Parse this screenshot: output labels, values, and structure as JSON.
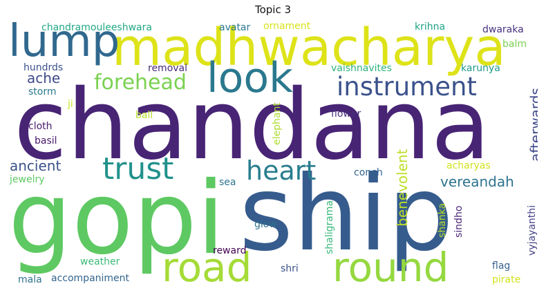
{
  "title": "Topic 3",
  "words": [
    {
      "text": "chandana",
      "color": "#482475"
    },
    {
      "text": "gopi",
      "color": "#5ec962"
    },
    {
      "text": "ship",
      "color": "#365c8d"
    },
    {
      "text": "madhwacharya",
      "color": "#dde318"
    },
    {
      "text": "lump",
      "color": "#31688e"
    },
    {
      "text": "look",
      "color": "#2a788e"
    },
    {
      "text": "road",
      "color": "#a5db36"
    },
    {
      "text": "round",
      "color": "#95d840"
    },
    {
      "text": "trust",
      "color": "#21918c"
    },
    {
      "text": "heart",
      "color": "#287d8e"
    },
    {
      "text": "instrument",
      "color": "#3b528b"
    },
    {
      "text": "forehead",
      "color": "#7ad151"
    },
    {
      "text": "ache",
      "color": "#3e4a89"
    },
    {
      "text": "ancient",
      "color": "#3b528b"
    },
    {
      "text": "vereandah",
      "color": "#2c728e"
    },
    {
      "text": "afterwards",
      "color": "#3e4989"
    },
    {
      "text": "benevolent",
      "color": "#bddf26"
    },
    {
      "text": "chandramouleeshwara",
      "color": "#22a884"
    },
    {
      "text": "avatar",
      "color": "#2a788e"
    },
    {
      "text": "ornament",
      "color": "#d8e219"
    },
    {
      "text": "krihna",
      "color": "#20a386"
    },
    {
      "text": "dwaraka",
      "color": "#46327e"
    },
    {
      "text": "balm",
      "color": "#7ad151"
    },
    {
      "text": "hundrds",
      "color": "#3b528b"
    },
    {
      "text": "removal",
      "color": "#482878"
    },
    {
      "text": "vaishnavites",
      "color": "#2db27d"
    },
    {
      "text": "karunya",
      "color": "#1f9a8a"
    },
    {
      "text": "storm",
      "color": "#2a788e"
    },
    {
      "text": "ji",
      "color": "#c8e020"
    },
    {
      "text": "ball",
      "color": "#b5de2b"
    },
    {
      "text": "elephant",
      "color": "#addc30"
    },
    {
      "text": "flower",
      "color": "#472d7b"
    },
    {
      "text": "cloth",
      "color": "#481a6c"
    },
    {
      "text": "basil",
      "color": "#48186a"
    },
    {
      "text": "jewelry",
      "color": "#5ec962"
    },
    {
      "text": "sea",
      "color": "#2c728e"
    },
    {
      "text": "conch",
      "color": "#33638d"
    },
    {
      "text": "acharyas",
      "color": "#d2e21b"
    },
    {
      "text": "shaligrama",
      "color": "#35b779"
    },
    {
      "text": "shanka",
      "color": "#b8de29"
    },
    {
      "text": "sindho",
      "color": "#482576"
    },
    {
      "text": "vyjayanthi",
      "color": "#424086"
    },
    {
      "text": "glow",
      "color": "#2c728e"
    },
    {
      "text": "reward",
      "color": "#440154"
    },
    {
      "text": "weather",
      "color": "#3aba76"
    },
    {
      "text": "shri",
      "color": "#3b528b"
    },
    {
      "text": "flag",
      "color": "#355f8d"
    },
    {
      "text": "mala",
      "color": "#2c728e"
    },
    {
      "text": "accompaniment",
      "color": "#33638d"
    },
    {
      "text": "pirate",
      "color": "#d2e21b"
    }
  ]
}
